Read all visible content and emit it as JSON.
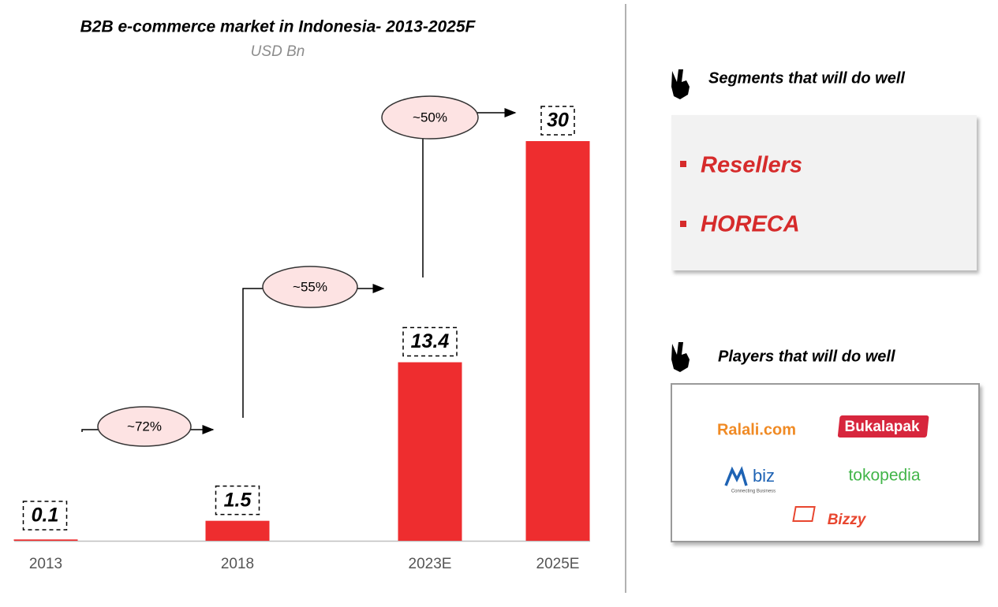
{
  "chart_data": {
    "type": "bar",
    "title": "B2B e-commerce market in Indonesia- 2013-2025F",
    "subtitle": "USD Bn",
    "categories": [
      "2013",
      "2018",
      "2023E",
      "2025E"
    ],
    "values": [
      0.1,
      1.5,
      13.4,
      30
    ],
    "color": "#ee2d2f",
    "annotations": [
      "~72%",
      "~55%",
      "~50%"
    ]
  },
  "segments": {
    "title": "Segments that will do well",
    "items": [
      "Resellers",
      "HORECA"
    ]
  },
  "players": {
    "title": "Players that will do well",
    "logos": [
      "Ralali.com",
      "Bukalapak",
      "biz",
      "Connecting Business",
      "tokopedia",
      "Bizzy"
    ]
  }
}
